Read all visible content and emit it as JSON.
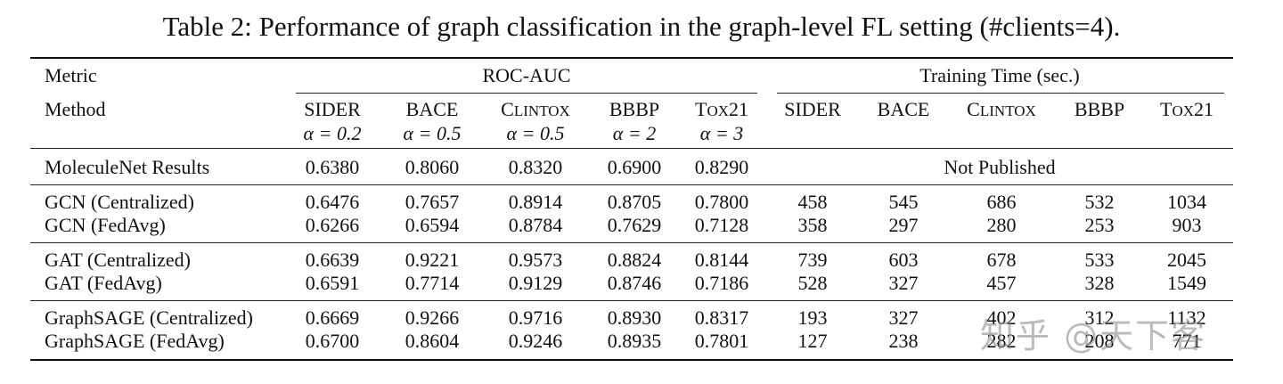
{
  "caption": "Table 2: Performance of graph classification in the graph-level FL setting (#clients=4).",
  "header": {
    "metric_label": "Metric",
    "method_label": "Method",
    "roc_group": "ROC-AUC",
    "time_group": "Training Time (sec.)",
    "datasets": [
      "SIDER",
      "BACE",
      "CLINTOX",
      "BBBP",
      "TOX21"
    ],
    "alphas": [
      "α = 0.2",
      "α = 0.5",
      "α = 0.5",
      "α = 2",
      "α = 3"
    ]
  },
  "rows": [
    {
      "method": "MoleculeNet Results",
      "roc": [
        "0.6380",
        "0.8060",
        "0.8320",
        "0.6900",
        "0.8290"
      ],
      "not_published": "Not Published"
    },
    {
      "method": "GCN (Centralized)",
      "roc": [
        "0.6476",
        "0.7657",
        "0.8914",
        "0.8705",
        "0.7800"
      ],
      "time": [
        "458",
        "545",
        "686",
        "532",
        "1034"
      ]
    },
    {
      "method": "GCN (FedAvg)",
      "roc": [
        "0.6266",
        "0.6594",
        "0.8784",
        "0.7629",
        "0.7128"
      ],
      "time": [
        "358",
        "297",
        "280",
        "253",
        "903"
      ]
    },
    {
      "method": "GAT (Centralized)",
      "roc": [
        "0.6639",
        "0.9221",
        "0.9573",
        "0.8824",
        "0.8144"
      ],
      "time": [
        "739",
        "603",
        "678",
        "533",
        "2045"
      ]
    },
    {
      "method": "GAT (FedAvg)",
      "roc": [
        "0.6591",
        "0.7714",
        "0.9129",
        "0.8746",
        "0.7186"
      ],
      "time": [
        "528",
        "327",
        "457",
        "328",
        "1549"
      ]
    },
    {
      "method": "GraphSAGE (Centralized)",
      "roc": [
        "0.6669",
        "0.9266",
        "0.9716",
        "0.8930",
        "0.8317"
      ],
      "time": [
        "193",
        "327",
        "402",
        "312",
        "1132"
      ]
    },
    {
      "method": "GraphSAGE (FedAvg)",
      "roc": [
        "0.6700",
        "0.8604",
        "0.9246",
        "0.8935",
        "0.7801"
      ],
      "time": [
        "127",
        "238",
        "282",
        "208",
        "771"
      ]
    }
  ],
  "watermark": "知乎 @天下客"
}
